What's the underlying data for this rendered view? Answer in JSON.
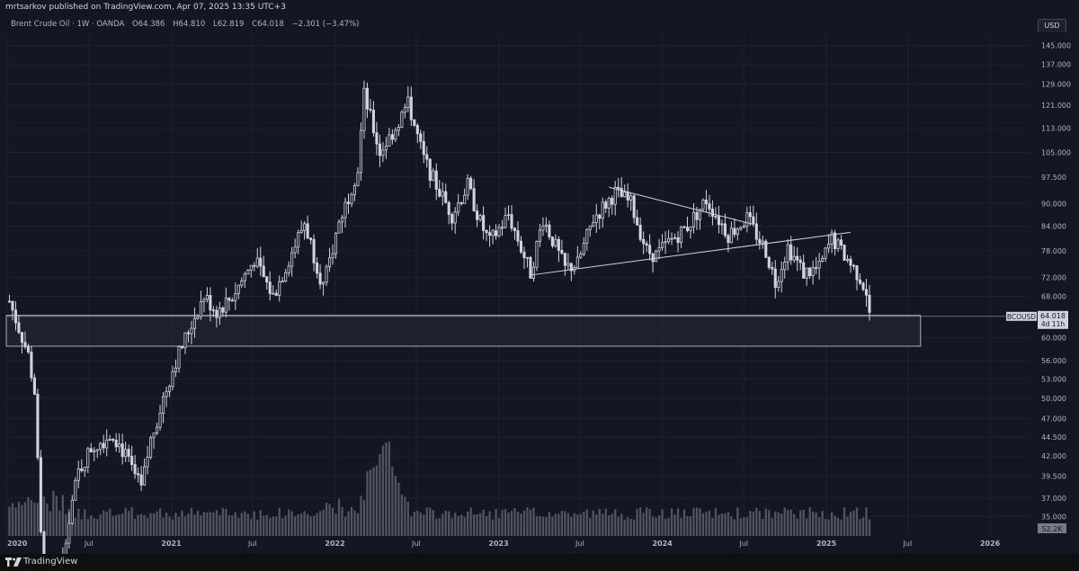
{
  "publisher_line": "mrtsarkov published on TradingView.com, Apr 07, 2025 13:35 UTC+3",
  "legend": {
    "symbol": "Brent Crude Oil · 1W · OANDA",
    "open": "O64.386",
    "high": "H64.810",
    "low": "L62.819",
    "close": "C64.018",
    "change": "−2.301 (−3.47%)"
  },
  "currency_button": "USD",
  "footer_brand": "TradingView",
  "colors": {
    "background": "#131722",
    "candle": "#d1d4dc",
    "volume": "#5d606b",
    "grid": "#1e222d",
    "zone": "#2a2e39",
    "text": "#b2b5be"
  },
  "chart_data": {
    "type": "candlestick",
    "symbol": "BCOUSD",
    "timeframe": "1W",
    "scale": "log",
    "y_ticks": [
      "145.000",
      "137.000",
      "129.000",
      "121.000",
      "113.000",
      "105.000",
      "97.500",
      "90.000",
      "84.000",
      "78.000",
      "72.000",
      "68.000",
      "60.000",
      "56.000",
      "53.000",
      "50.000",
      "47.000",
      "44.500",
      "42.000",
      "39.500",
      "37.000",
      "35.000"
    ],
    "x_ticks": [
      "2020",
      "Jul",
      "2021",
      "Jul",
      "2022",
      "Jul",
      "2023",
      "Jul",
      "2024",
      "Jul",
      "2025",
      "Jul",
      "2026"
    ],
    "last_price_label": "64.018",
    "countdown_label": "4d 11h",
    "symbol_label": "BCOUSD",
    "volume_label": "52.2K",
    "price_path": [
      [
        "2020-01-06",
        67
      ],
      [
        "2020-02-17",
        57
      ],
      [
        "2020-03-02",
        51
      ],
      [
        "2020-03-16",
        33
      ],
      [
        "2020-03-30",
        30
      ],
      [
        "2020-04-20",
        28
      ],
      [
        "2020-05-18",
        35
      ],
      [
        "2020-06-08",
        40
      ],
      [
        "2020-07-06",
        43
      ],
      [
        "2020-08-24",
        45
      ],
      [
        "2020-09-21",
        42
      ],
      [
        "2020-10-26",
        38
      ],
      [
        "2020-11-16",
        44
      ],
      [
        "2020-12-14",
        50
      ],
      [
        "2021-01-11",
        56
      ],
      [
        "2021-02-22",
        64
      ],
      [
        "2021-03-15",
        68
      ],
      [
        "2021-04-12",
        65
      ],
      [
        "2021-05-17",
        68
      ],
      [
        "2021-07-05",
        76
      ],
      [
        "2021-08-16",
        68
      ],
      [
        "2021-09-20",
        76
      ],
      [
        "2021-10-25",
        85
      ],
      [
        "2021-12-06",
        70
      ],
      [
        "2022-01-10",
        85
      ],
      [
        "2022-02-21",
        100
      ],
      [
        "2022-03-07",
        125
      ],
      [
        "2022-04-11",
        105
      ],
      [
        "2022-05-16",
        113
      ],
      [
        "2022-06-13",
        122
      ],
      [
        "2022-07-18",
        103
      ],
      [
        "2022-08-15",
        95
      ],
      [
        "2022-09-19",
        87
      ],
      [
        "2022-10-24",
        95
      ],
      [
        "2022-11-21",
        85
      ],
      [
        "2022-12-12",
        80
      ],
      [
        "2023-01-23",
        87
      ],
      [
        "2023-03-13",
        73
      ],
      [
        "2023-04-10",
        86
      ],
      [
        "2023-05-29",
        74
      ],
      [
        "2023-06-26",
        75
      ],
      [
        "2023-07-31",
        86
      ],
      [
        "2023-09-18",
        93
      ],
      [
        "2023-10-23",
        90
      ],
      [
        "2023-11-27",
        78
      ],
      [
        "2023-12-18",
        77
      ],
      [
        "2024-01-15",
        80
      ],
      [
        "2024-02-26",
        84
      ],
      [
        "2024-04-08",
        91
      ],
      [
        "2024-05-27",
        82
      ],
      [
        "2024-07-08",
        86
      ],
      [
        "2024-08-19",
        78
      ],
      [
        "2024-09-09",
        71
      ],
      [
        "2024-10-07",
        79
      ],
      [
        "2024-11-11",
        73
      ],
      [
        "2024-12-16",
        74
      ],
      [
        "2025-01-13",
        81
      ],
      [
        "2025-02-17",
        76
      ],
      [
        "2025-03-17",
        72
      ],
      [
        "2025-03-31",
        69
      ],
      [
        "2025-04-07",
        64
      ]
    ],
    "zones": [
      {
        "top": 64.2,
        "bottom": 58.5,
        "from": "2020-01-01",
        "to": "2025-08-01"
      }
    ],
    "trendlines": [
      {
        "points": [
          [
            "2023-09-04",
            94.5
          ],
          [
            "2024-07-22",
            84.5
          ]
        ]
      },
      {
        "points": [
          [
            "2023-03-13",
            72.5
          ],
          [
            "2025-02-24",
            82.5
          ]
        ]
      }
    ],
    "current_price": 64.018
  }
}
